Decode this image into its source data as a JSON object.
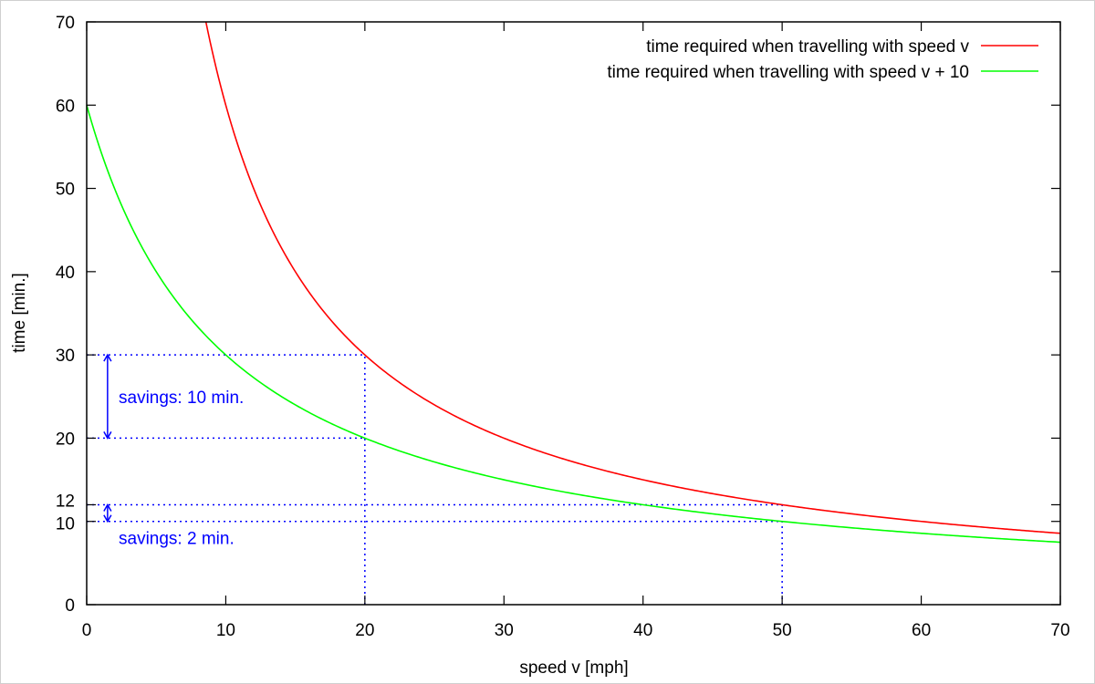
{
  "chart_data": {
    "type": "line",
    "title": "",
    "xlabel": "speed v [mph]",
    "ylabel": "time [min.]",
    "xlim": [
      0,
      70
    ],
    "ylim": [
      0,
      70
    ],
    "x_ticks": [
      0,
      10,
      20,
      30,
      40,
      50,
      60,
      70
    ],
    "y_ticks": [
      0,
      10,
      12,
      20,
      30,
      40,
      50,
      60,
      70
    ],
    "grid": false,
    "legend_position": "top-right",
    "series": [
      {
        "name": "time required when travelling with speed v",
        "formula": "t = 600 / v",
        "color": "#ff0000",
        "x": [
          8.57,
          10,
          12,
          15,
          20,
          25,
          30,
          40,
          50,
          60,
          70
        ],
        "y": [
          70,
          60,
          50,
          40,
          30,
          24,
          20,
          15,
          12,
          10,
          8.57
        ]
      },
      {
        "name": "time required when travelling with speed v + 10",
        "formula": "t = 600 / (v + 10)",
        "color": "#00ff00",
        "x": [
          0,
          5,
          10,
          15,
          20,
          30,
          40,
          50,
          60,
          70
        ],
        "y": [
          60,
          40,
          30,
          24,
          20,
          15,
          12,
          10,
          8.57,
          7.5
        ]
      }
    ],
    "reference_lines": [
      {
        "kind": "horizontal",
        "y": 30,
        "x_from": 0,
        "x_to": 20
      },
      {
        "kind": "horizontal",
        "y": 20,
        "x_from": 0,
        "x_to": 20
      },
      {
        "kind": "vertical",
        "x": 20,
        "y_from": 0,
        "y_to": 30
      },
      {
        "kind": "horizontal",
        "y": 12,
        "x_from": 0,
        "x_to": 50
      },
      {
        "kind": "horizontal",
        "y": 10,
        "x_from": 0,
        "x_to": 50
      },
      {
        "kind": "vertical",
        "x": 50,
        "y_from": 0,
        "y_to": 12
      }
    ],
    "annotations": [
      {
        "text": "savings: 10 min.",
        "arrow_x": 1.5,
        "from_y": 30,
        "to_y": 20
      },
      {
        "text": "savings: 2 min.",
        "arrow_x": 1.5,
        "from_y": 12,
        "to_y": 10
      }
    ],
    "annotation_color": "#0000ff"
  }
}
